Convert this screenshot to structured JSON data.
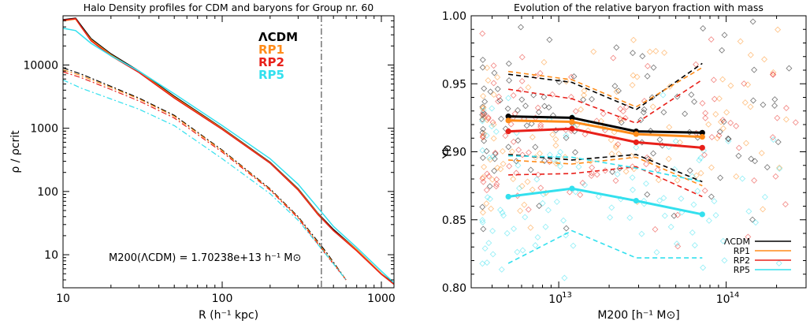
{
  "chart_data": [
    {
      "type": "line",
      "title": "Halo Density profiles for CDM and baryons for Group nr. 60",
      "xlabel": "R (h⁻¹ kpc)",
      "ylabel": "ρ / ρcrit",
      "xscale": "log",
      "yscale": "log",
      "xlim": [
        10,
        1200
      ],
      "ylim": [
        3,
        60000
      ],
      "xticks": [
        {
          "value": 10,
          "label": "10"
        },
        {
          "value": 100,
          "label": "100"
        },
        {
          "value": 1000,
          "label": "1000"
        }
      ],
      "yticks": [
        {
          "value": 10,
          "label": "10"
        },
        {
          "value": 100,
          "label": "100"
        },
        {
          "value": 1000,
          "label": "1000"
        },
        {
          "value": 10000,
          "label": "10000"
        }
      ],
      "vline": {
        "x": 420,
        "style": "dash-dot"
      },
      "annotation": "M200(ΛCDM) = 1.70238e+13 h⁻¹ M⊙",
      "legend": {
        "placement": "top-right",
        "entries": [
          "ΛCDM",
          "RP1",
          "RP2",
          "RP5"
        ]
      },
      "series": [
        {
          "name": "ΛCDM",
          "color": "#000000",
          "style": "solid",
          "component": "total",
          "x": [
            10,
            12,
            13,
            15,
            20,
            30,
            50,
            100,
            200,
            300,
            400,
            500,
            700,
            1000,
            1200
          ],
          "y": [
            52000,
            55000,
            42000,
            26000,
            15000,
            8000,
            3200,
            1000,
            290,
            110,
            45,
            25,
            12,
            5,
            3.5
          ]
        },
        {
          "name": "RP1",
          "color": "#ff8c1a",
          "style": "solid",
          "component": "total",
          "x": [
            10,
            12,
            13,
            15,
            20,
            30,
            50,
            100,
            200,
            300,
            400,
            500,
            700,
            1000,
            1200
          ],
          "y": [
            50000,
            53000,
            40000,
            25000,
            14500,
            7800,
            3100,
            980,
            285,
            108,
            44,
            24,
            12,
            5,
            3.4
          ]
        },
        {
          "name": "RP2",
          "color": "#e8201a",
          "style": "solid",
          "component": "total",
          "x": [
            10,
            12,
            13,
            15,
            20,
            30,
            50,
            100,
            200,
            300,
            400,
            500,
            700,
            1000,
            1200
          ],
          "y": [
            51000,
            54000,
            40000,
            24000,
            14000,
            7600,
            3000,
            960,
            280,
            105,
            43,
            24,
            11.5,
            4.9,
            3.4
          ]
        },
        {
          "name": "RP5",
          "color": "#33e0ee",
          "style": "solid",
          "component": "total",
          "x": [
            10,
            12,
            15,
            20,
            30,
            50,
            100,
            200,
            300,
            400,
            500,
            700,
            1000,
            1200
          ],
          "y": [
            38000,
            35000,
            22000,
            14000,
            8000,
            3500,
            1100,
            330,
            130,
            55,
            28,
            13,
            5.5,
            3.6
          ]
        },
        {
          "name": "ΛCDM",
          "color": "#000000",
          "style": "dash-dot",
          "component": "baryons",
          "x": [
            10,
            13,
            20,
            30,
            50,
            100,
            200,
            300,
            450,
            600
          ],
          "y": [
            9000,
            7200,
            4600,
            3000,
            1600,
            450,
            110,
            40,
            11,
            4
          ]
        },
        {
          "name": "RP1",
          "color": "#ff8c1a",
          "style": "dash-dot",
          "component": "baryons",
          "x": [
            10,
            13,
            20,
            30,
            50,
            100,
            200,
            300,
            450,
            600
          ],
          "y": [
            8400,
            6800,
            4400,
            2900,
            1550,
            440,
            108,
            39,
            10.5,
            4
          ]
        },
        {
          "name": "RP2",
          "color": "#e8201a",
          "style": "dash-dot",
          "component": "baryons",
          "x": [
            10,
            13,
            20,
            30,
            50,
            100,
            200,
            300,
            450,
            600
          ],
          "y": [
            7800,
            6300,
            4100,
            2700,
            1450,
            420,
            105,
            38,
            10,
            4
          ]
        },
        {
          "name": "RP5",
          "color": "#33e0ee",
          "style": "dash-dot",
          "component": "baryons",
          "x": [
            10,
            13,
            20,
            30,
            50,
            100,
            200,
            300,
            450,
            600
          ],
          "y": [
            5800,
            4300,
            2900,
            2000,
            1100,
            330,
            92,
            35,
            10,
            4
          ]
        }
      ]
    },
    {
      "type": "line",
      "title": "Evolution of the relative  baryon fraction with mass",
      "xlabel": "M200 [h⁻¹ M⊙]",
      "ylabel": "Yb",
      "xscale": "log",
      "yscale": "linear",
      "xlim": [
        3000000000000.0,
        300000000000000.0
      ],
      "ylim": [
        0.8,
        1.0
      ],
      "xticks": [
        {
          "value": 10000000000000.0,
          "label": "10",
          "exp": "13"
        },
        {
          "value": 100000000000000.0,
          "label": "10",
          "exp": "14"
        }
      ],
      "yticks": [
        {
          "value": 0.8,
          "label": "0.80"
        },
        {
          "value": 0.85,
          "label": "0.85"
        },
        {
          "value": 0.9,
          "label": "0.90"
        },
        {
          "value": 0.95,
          "label": "0.95"
        },
        {
          "value": 1.0,
          "label": "1.00"
        }
      ],
      "legend": {
        "placement": "bottom-right",
        "entries": [
          "ΛCDM",
          "RP1",
          "RP2",
          "RP5"
        ]
      },
      "bin_centers": [
        5000000000000.0,
        12000000000000.0,
        29000000000000.0,
        72000000000000.0
      ],
      "series": [
        {
          "name": "ΛCDM",
          "color": "#000000",
          "median": [
            0.926,
            0.925,
            0.915,
            0.914
          ],
          "upper": [
            0.957,
            0.951,
            0.931,
            0.965
          ],
          "lower": [
            0.898,
            0.894,
            0.898,
            0.878
          ],
          "scatter_center": 0.92,
          "scatter_spread": 0.028
        },
        {
          "name": "RP1",
          "color": "#ff8c1a",
          "median": [
            0.923,
            0.922,
            0.913,
            0.911
          ],
          "upper": [
            0.959,
            0.953,
            0.933,
            0.962
          ],
          "lower": [
            0.894,
            0.891,
            0.896,
            0.875
          ],
          "scatter_center": 0.918,
          "scatter_spread": 0.03
        },
        {
          "name": "RP2",
          "color": "#e8201a",
          "median": [
            0.915,
            0.917,
            0.907,
            0.903
          ],
          "upper": [
            0.946,
            0.939,
            0.921,
            0.953
          ],
          "lower": [
            0.883,
            0.884,
            0.889,
            0.867
          ],
          "scatter_center": 0.91,
          "scatter_spread": 0.032
        },
        {
          "name": "RP5",
          "color": "#33e0ee",
          "median": [
            0.867,
            0.873,
            0.864,
            0.854
          ],
          "upper": [
            0.897,
            0.896,
            0.888,
            0.878
          ],
          "lower": [
            0.818,
            0.842,
            0.822,
            0.822
          ],
          "scatter_center": 0.866,
          "scatter_spread": 0.035
        }
      ]
    }
  ]
}
